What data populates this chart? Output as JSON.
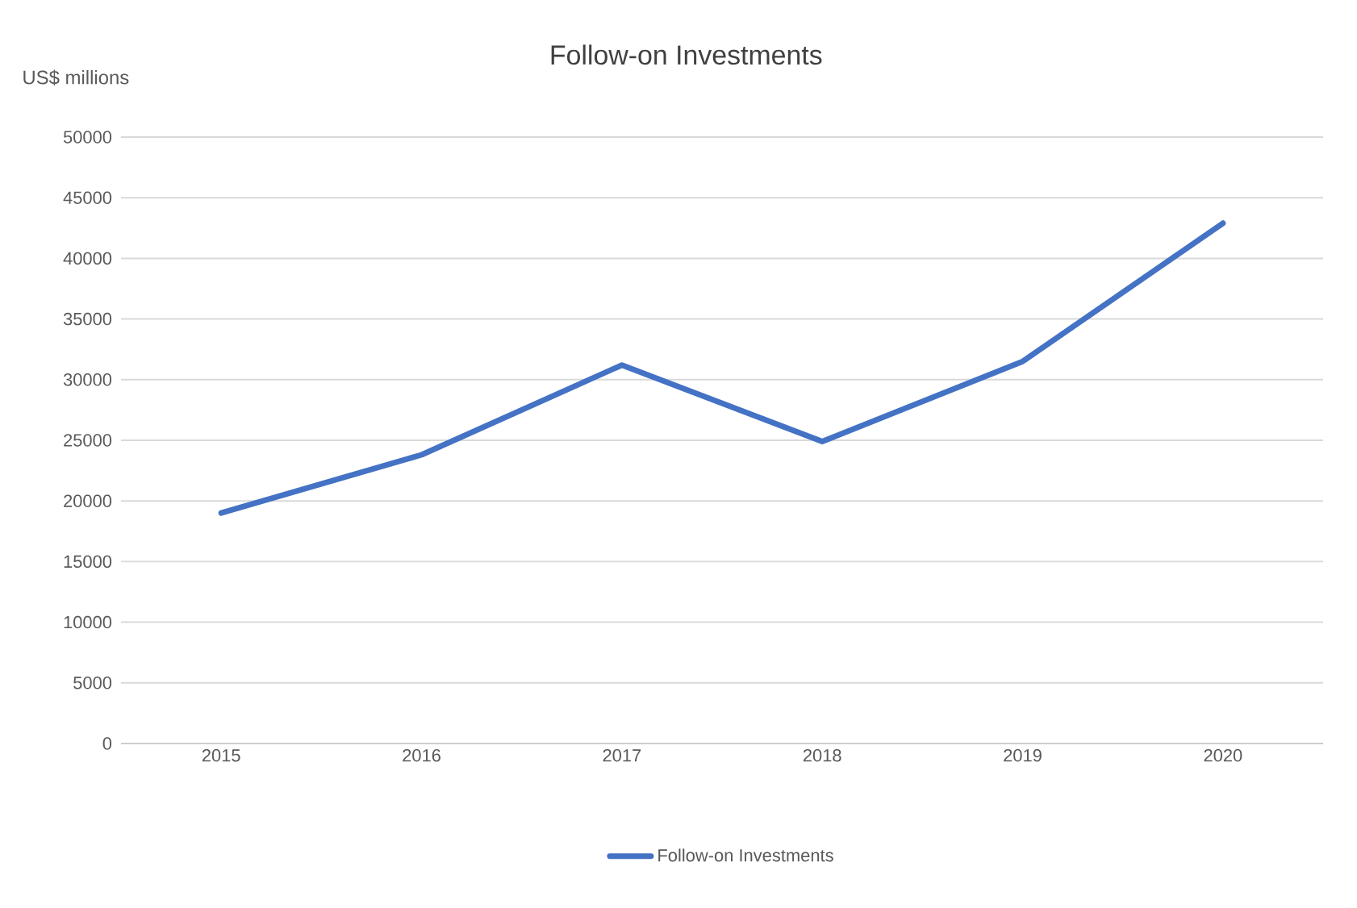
{
  "chart_data": {
    "type": "line",
    "title": "Follow-on Investments",
    "ylabel": "US$ millions",
    "categories": [
      "2015",
      "2016",
      "2017",
      "2018",
      "2019",
      "2020"
    ],
    "series": [
      {
        "name": "Follow-on Investments",
        "color": "#4472c4",
        "values": [
          19000,
          23800,
          31200,
          24900,
          31500,
          42900
        ]
      }
    ],
    "ylim": [
      0,
      50000
    ],
    "yticks": [
      0,
      5000,
      10000,
      15000,
      20000,
      25000,
      30000,
      35000,
      40000,
      45000,
      50000
    ],
    "grid": "y",
    "legend": "bottom"
  }
}
